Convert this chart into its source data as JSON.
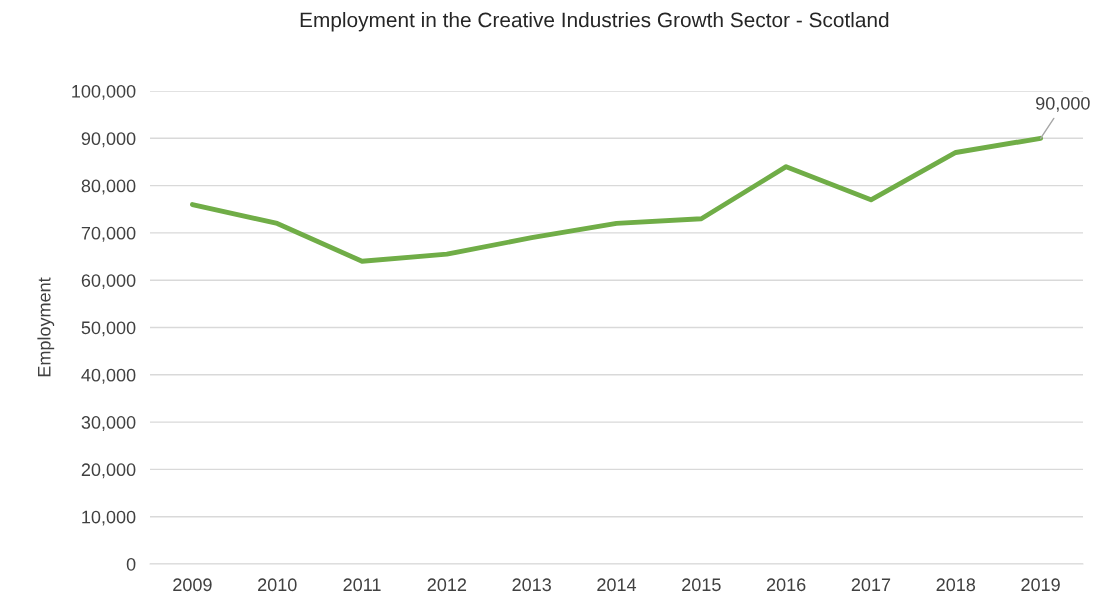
{
  "chart_data": {
    "type": "line",
    "title": "Employment in the Creative Industries Growth Sector - Scotland",
    "ylabel": "Employment",
    "categories": [
      "2009",
      "2010",
      "2011",
      "2012",
      "2013",
      "2014",
      "2015",
      "2016",
      "2017",
      "2018",
      "2019"
    ],
    "series": [
      {
        "color": "#70ad47",
        "values": [
          76000,
          72000,
          64000,
          65500,
          69000,
          72000,
          73000,
          84000,
          77000,
          87000,
          90000
        ],
        "value_labels": [
          null,
          null,
          null,
          null,
          null,
          null,
          null,
          null,
          null,
          null,
          "90,000"
        ]
      }
    ],
    "ylim": [
      0,
      100000
    ],
    "yticks": [
      {
        "value": 0,
        "label": "0"
      },
      {
        "value": 10000,
        "label": "10,000"
      },
      {
        "value": 20000,
        "label": "20,000"
      },
      {
        "value": 30000,
        "label": "30,000"
      },
      {
        "value": 40000,
        "label": "40,000"
      },
      {
        "value": 50000,
        "label": "50,000"
      },
      {
        "value": 60000,
        "label": "60,000"
      },
      {
        "value": 70000,
        "label": "70,000"
      },
      {
        "value": 80000,
        "label": "80,000"
      },
      {
        "value": 90000,
        "label": "90,000"
      },
      {
        "value": 100000,
        "label": "100,000"
      }
    ],
    "grid": "y",
    "marker": "none",
    "line_style": "solid",
    "legend": false
  }
}
